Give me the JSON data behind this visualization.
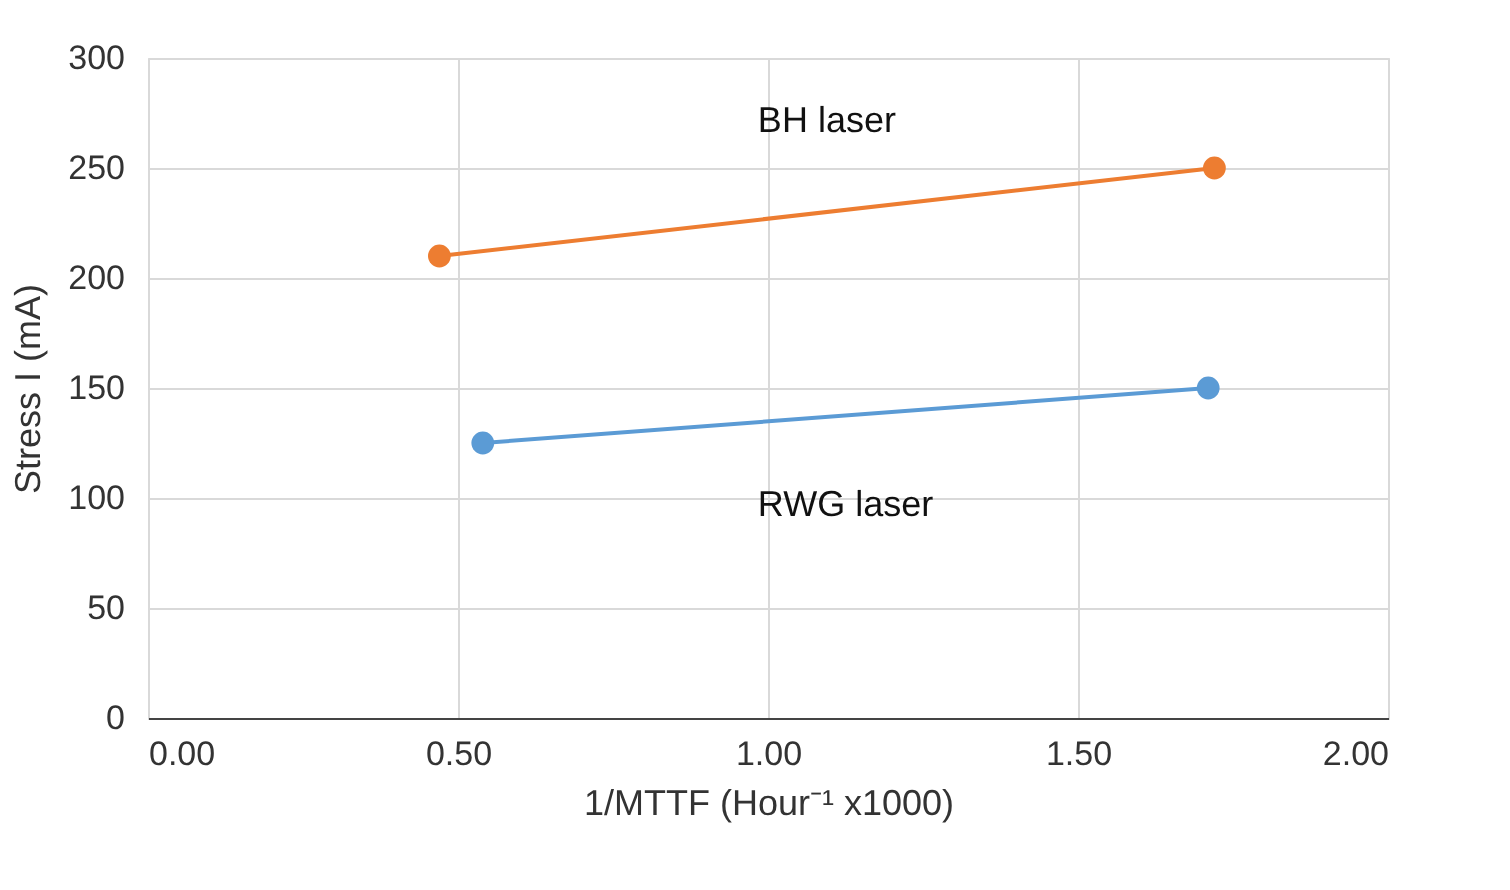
{
  "chart_data": {
    "type": "line",
    "xlabel": "1/MTTF (Hour⁻¹ x1000)",
    "ylabel": "Stress I (mA)",
    "series": [
      {
        "name": "BH laser",
        "color": "#ed7d31",
        "x": [
          0.47,
          1.72
        ],
        "values": [
          210,
          250
        ]
      },
      {
        "name": "RWG laser",
        "color": "#5b9bd5",
        "x": [
          0.54,
          1.71
        ],
        "values": [
          125,
          150
        ]
      }
    ],
    "xlim": [
      0,
      2
    ],
    "xticks": [
      {
        "value": 0,
        "label": "0.00"
      },
      {
        "value": 0.5,
        "label": "0.50"
      },
      {
        "value": 1,
        "label": "1.00"
      },
      {
        "value": 1.5,
        "label": "1.50"
      },
      {
        "value": 2,
        "label": "2.00"
      }
    ],
    "ylim": [
      0,
      300
    ],
    "yticks": [
      0,
      50,
      100,
      150,
      200,
      250,
      300
    ],
    "grid": true,
    "marker": "circle",
    "line_style": "solid"
  }
}
